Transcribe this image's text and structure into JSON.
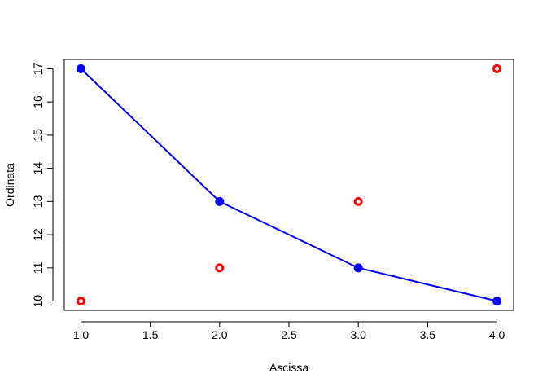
{
  "chart_data": {
    "type": "scatter",
    "title": "",
    "xlabel": "Ascissa",
    "ylabel": "Ordinata",
    "xlim": [
      0.88,
      4.12
    ],
    "ylim": [
      9.72,
      17.28
    ],
    "x_ticks": [
      1.0,
      1.5,
      2.0,
      2.5,
      3.0,
      3.5,
      4.0
    ],
    "x_tick_labels": [
      "1.0",
      "1.5",
      "2.0",
      "2.5",
      "3.0",
      "3.5",
      "4.0"
    ],
    "y_ticks": [
      10,
      11,
      12,
      13,
      14,
      15,
      16,
      17
    ],
    "y_tick_labels": [
      "10",
      "11",
      "12",
      "13",
      "14",
      "15",
      "16",
      "17"
    ],
    "grid": false,
    "legend": "none",
    "series": [
      {
        "style": "line-with-points",
        "color": "#0000ff",
        "x": [
          1,
          2,
          3,
          4
        ],
        "y": [
          17,
          13,
          11,
          10
        ]
      },
      {
        "style": "hollow-points",
        "color": "#ff0000",
        "x": [
          1,
          2,
          3,
          4
        ],
        "y": [
          10,
          11,
          13,
          17
        ]
      }
    ]
  }
}
